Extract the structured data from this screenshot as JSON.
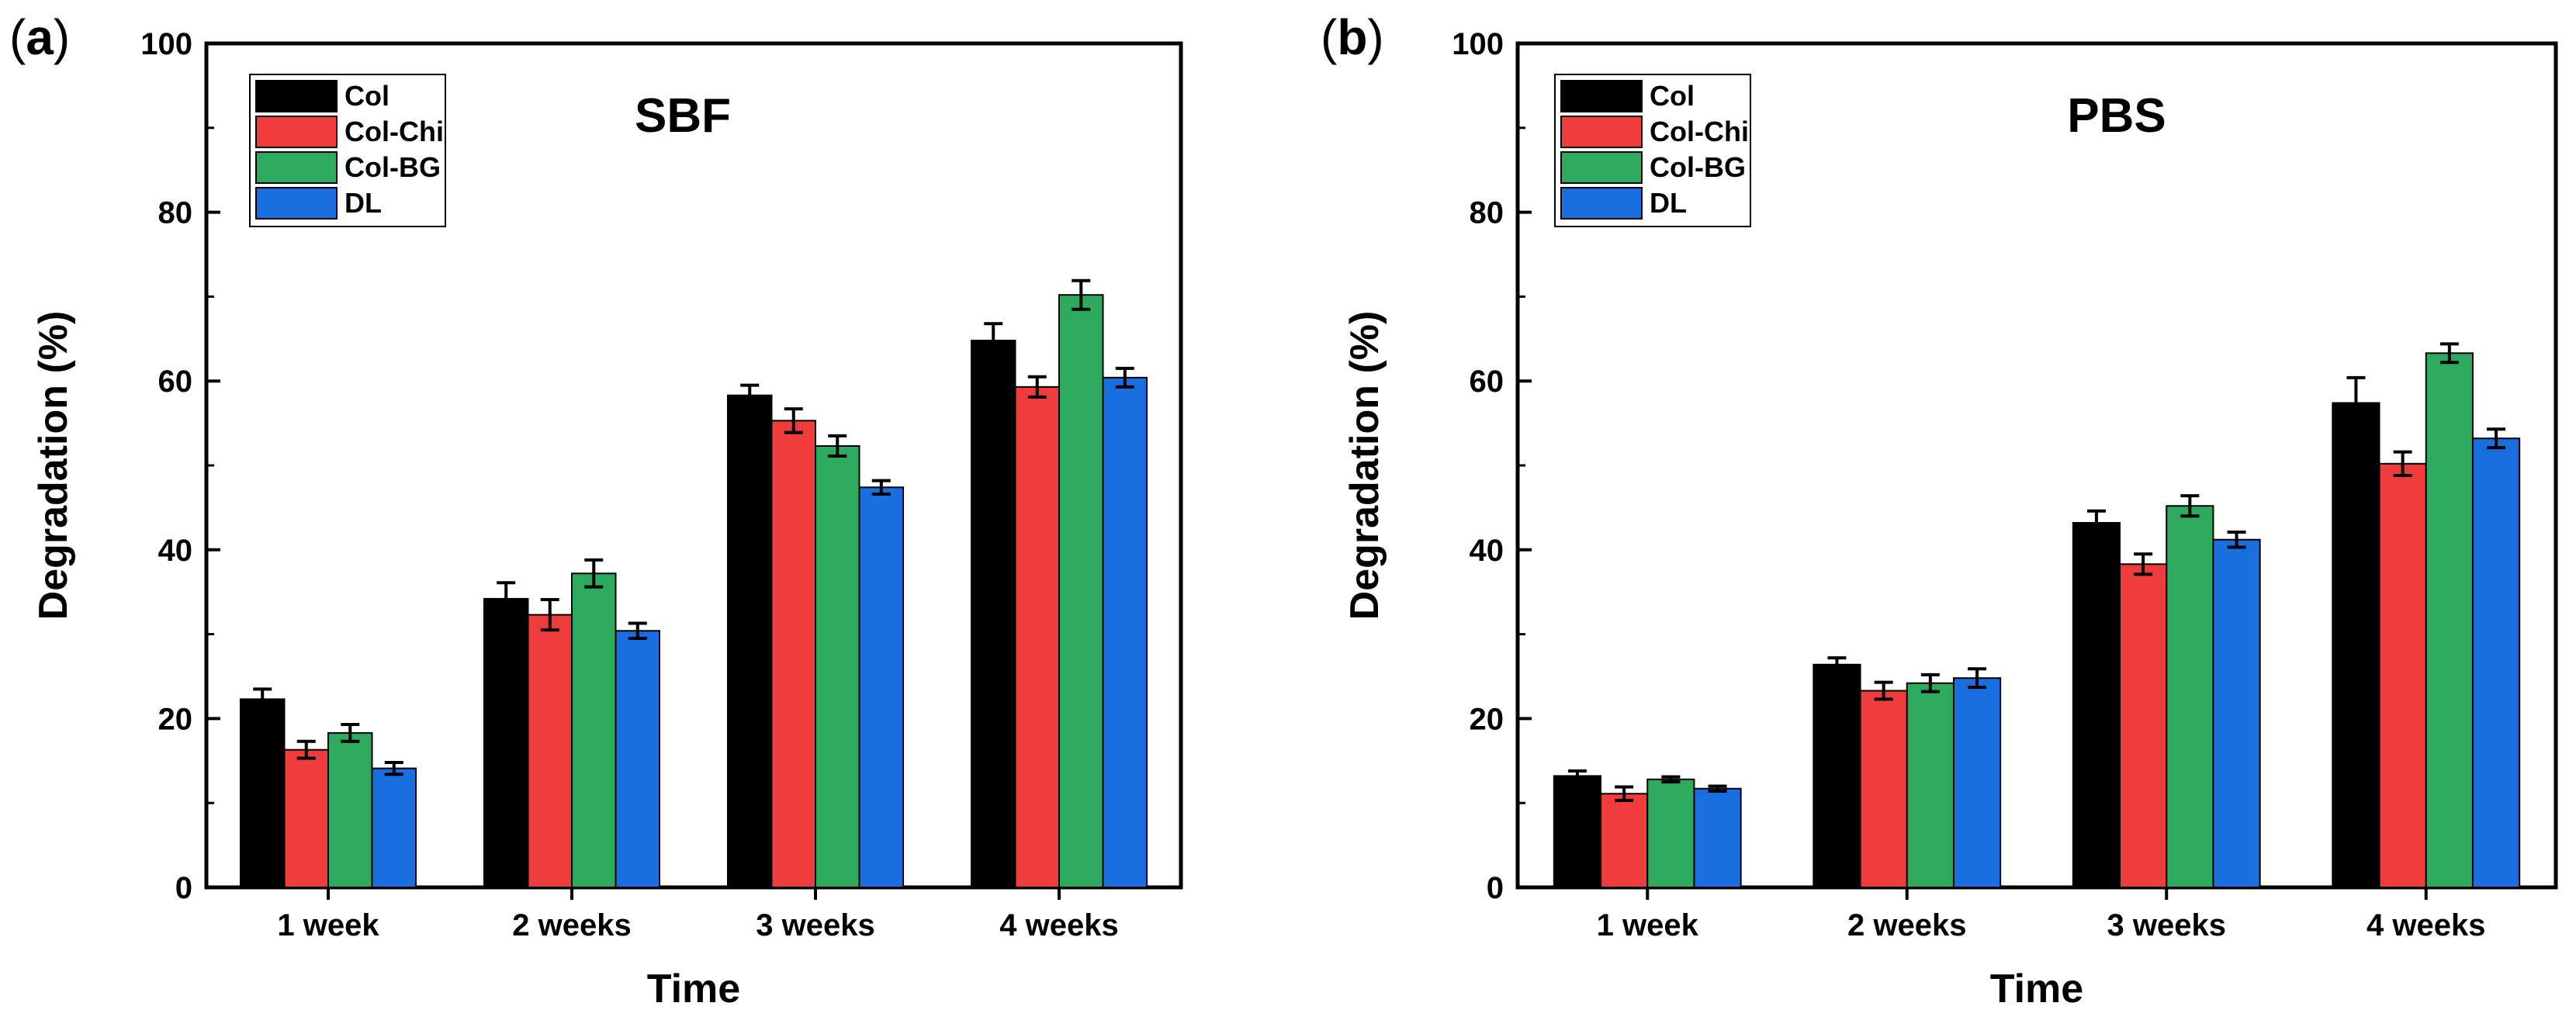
{
  "figure": {
    "panels": [
      "a",
      "b"
    ]
  },
  "chart_data": [
    {
      "panel": "a",
      "type": "bar",
      "title": "SBF",
      "xlabel": "Time",
      "ylabel": "Degradation (%)",
      "ylim": [
        0,
        100
      ],
      "yticks": [
        0,
        20,
        40,
        60,
        80,
        100
      ],
      "categories": [
        "1 week",
        "2 weeks",
        "3 weeks",
        "4 weeks"
      ],
      "legend_position": "top-left",
      "series": [
        {
          "name": "Col",
          "color": "#000000",
          "values": [
            22.3,
            34.2,
            58.3,
            64.8
          ],
          "errors": [
            1.2,
            1.9,
            1.2,
            2.0
          ]
        },
        {
          "name": "Col-Chi",
          "color": "#f03c3c",
          "values": [
            16.3,
            32.3,
            55.3,
            59.3
          ],
          "errors": [
            1.0,
            1.8,
            1.4,
            1.2
          ]
        },
        {
          "name": "Col-BG",
          "color": "#2eaa5e",
          "values": [
            18.3,
            37.2,
            52.3,
            70.2
          ],
          "errors": [
            1.0,
            1.6,
            1.2,
            1.7
          ]
        },
        {
          "name": "DL",
          "color": "#1a6fe0",
          "values": [
            14.1,
            30.4,
            47.4,
            60.4
          ],
          "errors": [
            0.7,
            0.9,
            0.8,
            1.1
          ]
        }
      ]
    },
    {
      "panel": "b",
      "type": "bar",
      "title": "PBS",
      "xlabel": "Time",
      "ylabel": "Degradation (%)",
      "ylim": [
        0,
        100
      ],
      "yticks": [
        0,
        20,
        40,
        60,
        80,
        100
      ],
      "categories": [
        "1 week",
        "2 weeks",
        "3 weeks",
        "4 weeks"
      ],
      "legend_position": "top-left",
      "series": [
        {
          "name": "Col",
          "color": "#000000",
          "values": [
            13.2,
            26.4,
            43.2,
            57.4
          ],
          "errors": [
            0.6,
            0.8,
            1.4,
            3.0
          ]
        },
        {
          "name": "Col-Chi",
          "color": "#f03c3c",
          "values": [
            11.1,
            23.3,
            38.3,
            50.2
          ],
          "errors": [
            0.8,
            1.0,
            1.2,
            1.4
          ]
        },
        {
          "name": "Col-BG",
          "color": "#2eaa5e",
          "values": [
            12.8,
            24.2,
            45.2,
            63.3
          ],
          "errors": [
            0.3,
            1.0,
            1.2,
            1.1
          ]
        },
        {
          "name": "DL",
          "color": "#1a6fe0",
          "values": [
            11.7,
            24.8,
            41.2,
            53.2
          ],
          "errors": [
            0.3,
            1.1,
            0.9,
            1.1
          ]
        }
      ]
    }
  ]
}
